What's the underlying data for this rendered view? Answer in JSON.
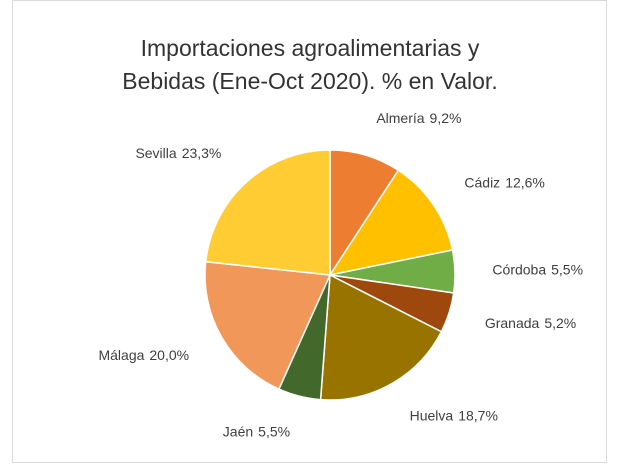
{
  "chart_data": {
    "type": "pie",
    "title": "Importaciones agroalimentarias y Bebidas (Ene-Oct 2020). % en Valor.",
    "categories": [
      "Almería",
      "Cádiz",
      "Córdoba",
      "Granada",
      "Huelva",
      "Jaén",
      "Málaga",
      "Sevilla"
    ],
    "values": [
      9.2,
      12.6,
      5.5,
      5.2,
      18.7,
      5.5,
      20.0,
      23.3
    ],
    "value_labels": [
      "9,2%",
      "12,6%",
      "5,5%",
      "5,2%",
      "18,7%",
      "5,5%",
      "20,0%",
      "23,3%"
    ],
    "colors": [
      "#ED7D31",
      "#FFC000",
      "#70AD47",
      "#9E480E",
      "#997300",
      "#43682B",
      "#F1975A",
      "#FFCD33"
    ]
  }
}
